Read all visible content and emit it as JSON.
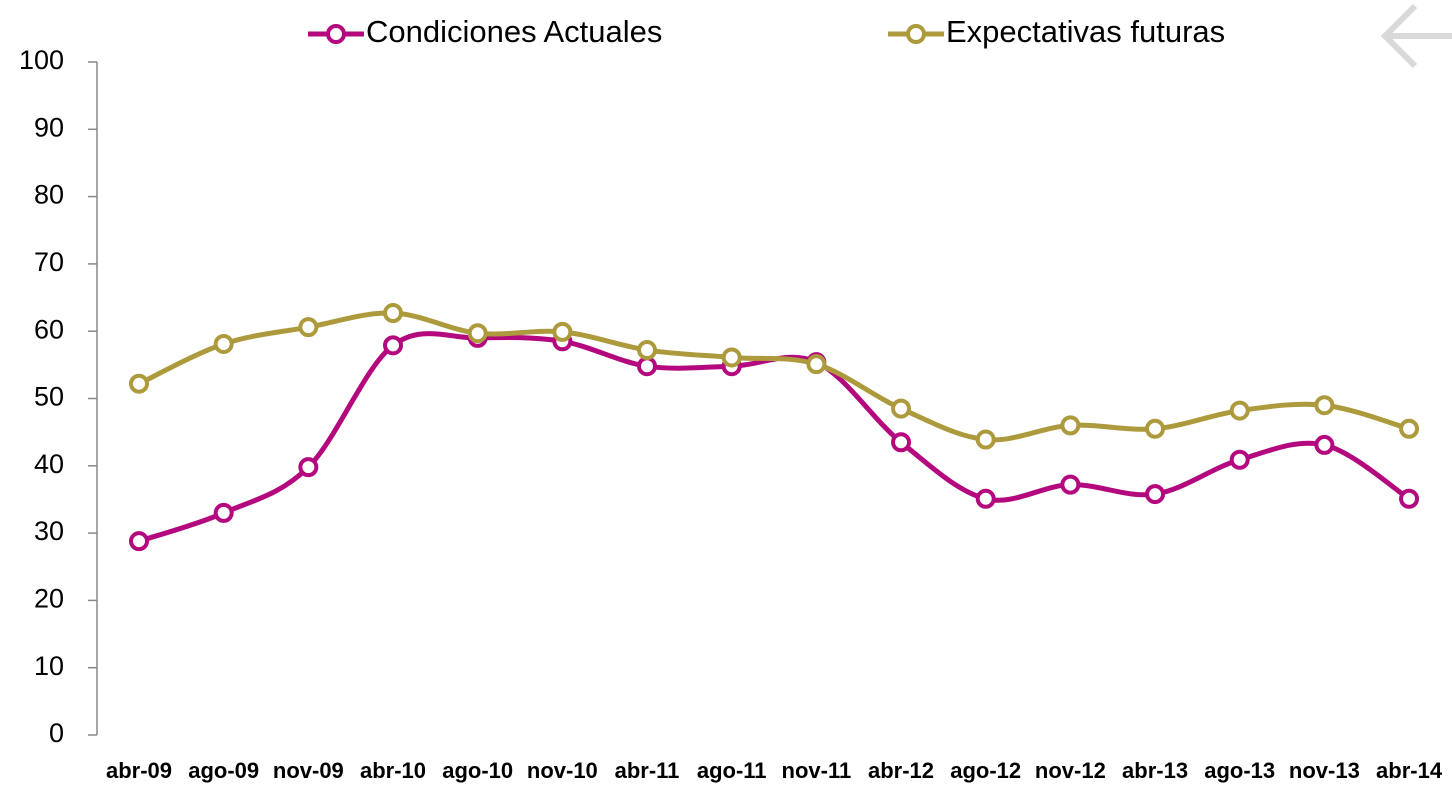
{
  "chart_data": {
    "type": "line",
    "categories": [
      "abr-09",
      "ago-09",
      "nov-09",
      "abr-10",
      "ago-10",
      "nov-10",
      "abr-11",
      "ago-11",
      "nov-11",
      "abr-12",
      "ago-12",
      "nov-12",
      "abr-13",
      "ago-13",
      "nov-13",
      "abr-14"
    ],
    "series": [
      {
        "name": "Condiciones Actuales",
        "color": "#b4087f",
        "values": [
          28.8,
          33.0,
          39.8,
          57.9,
          59.0,
          58.5,
          54.8,
          54.8,
          55.4,
          43.5,
          35.1,
          37.2,
          35.8,
          40.9,
          43.1,
          35.1
        ]
      },
      {
        "name": "Expectativas futuras",
        "color": "#ad9a3d",
        "values": [
          52.2,
          58.1,
          60.6,
          62.7,
          59.7,
          59.9,
          57.2,
          56.1,
          55.1,
          48.5,
          43.9,
          46.0,
          45.5,
          48.2,
          49.0,
          45.5
        ]
      }
    ],
    "ylim": [
      0,
      100
    ],
    "yticks": [
      0,
      10,
      20,
      30,
      40,
      50,
      60,
      70,
      80,
      90,
      100
    ],
    "smooth": true,
    "grid": false,
    "legend": "top"
  }
}
